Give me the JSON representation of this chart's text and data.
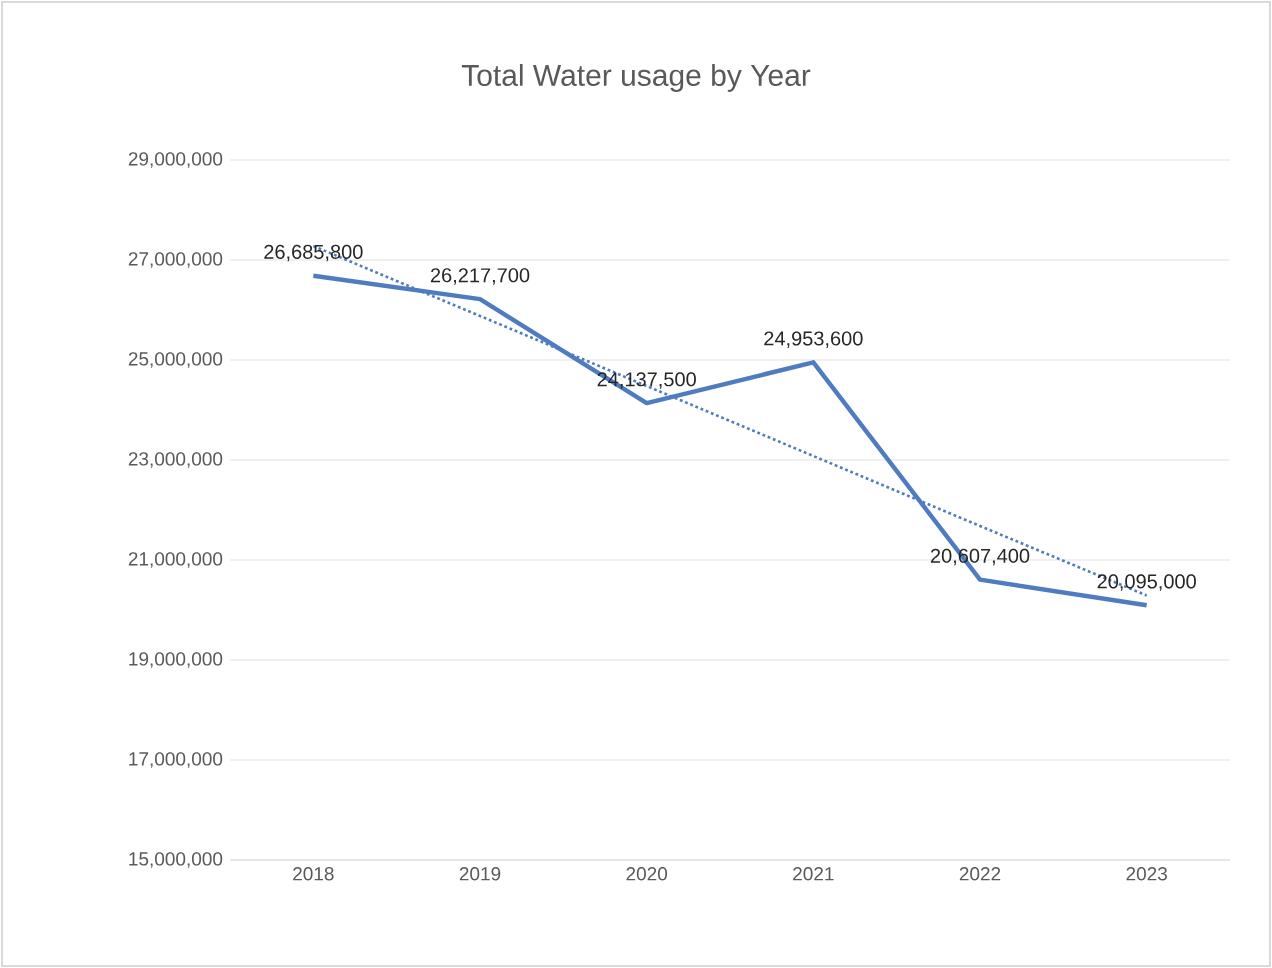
{
  "chart_data": {
    "type": "line",
    "title": "Total Water usage by Year",
    "categories": [
      "2018",
      "2019",
      "2020",
      "2021",
      "2022",
      "2023"
    ],
    "series": [
      {
        "type": "line",
        "color": "#4f7cc0",
        "line_style": "solid",
        "values": [
          26685800,
          26217700,
          24137500,
          24953600,
          20607400,
          20095000
        ],
        "value_labels": [
          "26,685,800",
          "26,217,700",
          "24,137,500",
          "24,953,600",
          "20,607,400",
          "20,095,000"
        ]
      },
      {
        "type": "line",
        "color": "#4f7cc0",
        "line_style": "dotted",
        "values": [
          27280000,
          25880000,
          24480000,
          23080000,
          21680000,
          20290000
        ]
      }
    ],
    "ylim": [
      15000000,
      29000000
    ],
    "yticks": [
      {
        "value": 15000000,
        "label": "15,000,000"
      },
      {
        "value": 17000000,
        "label": "17,000,000"
      },
      {
        "value": 19000000,
        "label": "19,000,000"
      },
      {
        "value": 21000000,
        "label": "21,000,000"
      },
      {
        "value": 23000000,
        "label": "23,000,000"
      },
      {
        "value": 25000000,
        "label": "25,000,000"
      },
      {
        "value": 27000000,
        "label": "27,000,000"
      },
      {
        "value": 29000000,
        "label": "29,000,000"
      }
    ],
    "grid": "y",
    "legend": false,
    "marker": "none"
  }
}
